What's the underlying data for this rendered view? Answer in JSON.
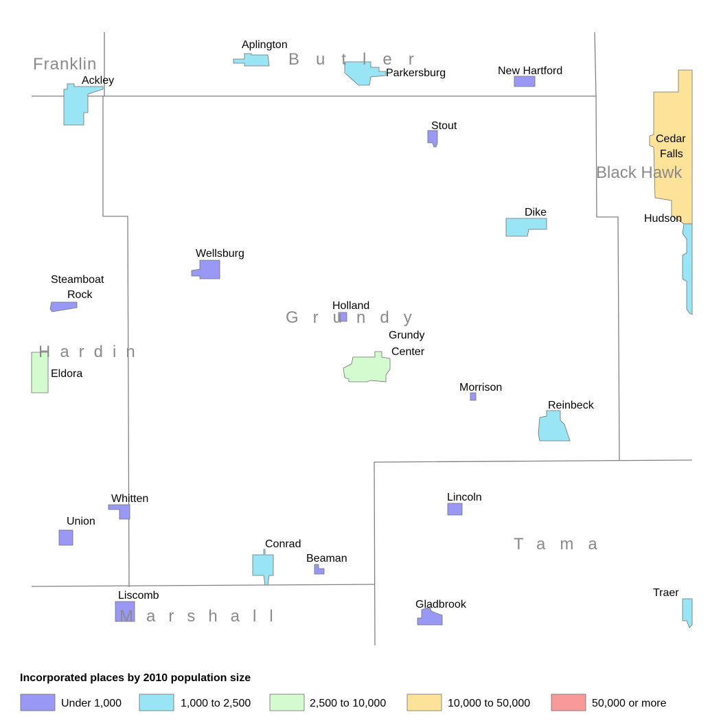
{
  "colors": {
    "under_1000": "#9999f5",
    "1000_2500": "#99e5f5",
    "2500_10000": "#d4fbcf",
    "10000_50000": "#fde29a",
    "50000_plus": "#f99a9a",
    "boundary": "#808080",
    "county_label": "#8a8a8a"
  },
  "counties": {
    "franklin": "Franklin",
    "butler": "Butler",
    "black_hawk": "Black Hawk",
    "grundy": "Grundy",
    "hardin": "Hardin",
    "tama": "Tama",
    "marshall": "Marshall"
  },
  "places": {
    "aplington": "Aplington",
    "ackley": "Ackley",
    "parkersburg": "Parkersburg",
    "new_hartford": "New Hartford",
    "stout": "Stout",
    "cedar_falls_1": "Cedar",
    "cedar_falls_2": "Falls",
    "hudson": "Hudson",
    "dike": "Dike",
    "wellsburg": "Wellsburg",
    "steamboat_rock_1": "Steamboat",
    "steamboat_rock_2": "Rock",
    "holland": "Holland",
    "grundy_center_1": "Grundy",
    "grundy_center_2": "Center",
    "eldora": "Eldora",
    "morrison": "Morrison",
    "reinbeck": "Reinbeck",
    "lincoln": "Lincoln",
    "whitten": "Whitten",
    "union": "Union",
    "conrad": "Conrad",
    "beaman": "Beaman",
    "liscomb": "Liscomb",
    "gladbrook": "Gladbrook",
    "traer": "Traer"
  },
  "legend": {
    "title": "Incorporated places by 2010 population size",
    "items": [
      {
        "label": "Under 1,000",
        "color": "#9999f5"
      },
      {
        "label": "1,000 to 2,500",
        "color": "#99e5f5"
      },
      {
        "label": "2,500 to 10,000",
        "color": "#d4fbcf"
      },
      {
        "label": "10,000 to 50,000",
        "color": "#fde29a"
      },
      {
        "label": "50,000 or more",
        "color": "#f99a9a"
      }
    ]
  }
}
